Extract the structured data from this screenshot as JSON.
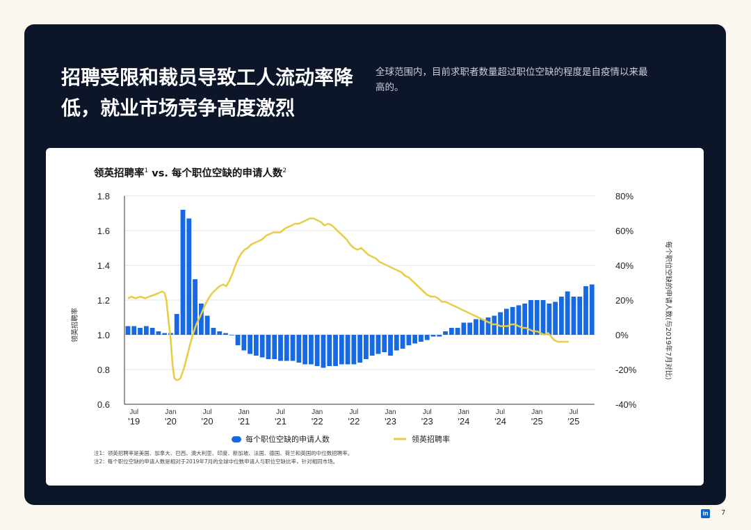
{
  "header": {
    "title": "招聘受限和裁员导致工人流动率降低，就业市场竞争高度激烈",
    "subtitle": "全球范围内，目前求职者数量超过职位空缺的程度是自疫情以来最高的。"
  },
  "chart_data": {
    "type": "bar+line",
    "title_part1": "领英招聘率",
    "title_sup1": "1",
    "title_part2": " vs. 每个职位空缺的申请人数",
    "title_sup2": "2",
    "ylabel_left": "领英招聘率",
    "ylabel_right": "每个职位空缺的申请人数(与2019年7月对比)",
    "ylim_left": [
      0.6,
      1.8
    ],
    "ylim_right": [
      -40,
      80
    ],
    "left_ticks": [
      "0.6",
      "0.8",
      "1.0",
      "1.2",
      "1.4",
      "1.6",
      "1.8"
    ],
    "right_ticks": [
      "-40%",
      "-20%",
      "0%",
      "20%",
      "40%",
      "60%",
      "80%"
    ],
    "x_start": "2019-06",
    "x_ticks": [
      {
        "month": "Jul",
        "year": "'19",
        "index": 1
      },
      {
        "month": "Jan",
        "year": "'20",
        "index": 7
      },
      {
        "month": "Jul",
        "year": "'20",
        "index": 13
      },
      {
        "month": "Jan",
        "year": "'21",
        "index": 19
      },
      {
        "month": "Jul",
        "year": "'21",
        "index": 25
      },
      {
        "month": "Jan",
        "year": "'22",
        "index": 31
      },
      {
        "month": "Jul",
        "year": "'22",
        "index": 37
      },
      {
        "month": "Jan",
        "year": "'23",
        "index": 43
      },
      {
        "month": "Jul",
        "year": "'23",
        "index": 49
      },
      {
        "month": "Jan",
        "year": "'24",
        "index": 55
      },
      {
        "month": "Jul",
        "year": "'24",
        "index": 61
      },
      {
        "month": "Jan",
        "year": "'25",
        "index": 67
      },
      {
        "month": "Jul",
        "year": "'25",
        "index": 73
      }
    ],
    "series": [
      {
        "name": "每个职位空缺的申请人数",
        "kind": "bar",
        "color": "#1668e3",
        "values": [
          5,
          5,
          4,
          5,
          4,
          2,
          1,
          1,
          12,
          72,
          67,
          32,
          18,
          11,
          4,
          2,
          1,
          0,
          -6,
          -9,
          -11,
          -12,
          -13,
          -14,
          -14,
          -15,
          -15,
          -15,
          -16,
          -17,
          -17,
          -18,
          -19,
          -18,
          -18,
          -17,
          -17,
          -17,
          -16,
          -14,
          -12,
          -11,
          -10,
          -12,
          -9,
          -8,
          -6,
          -5,
          -4,
          -3,
          -1,
          -1,
          2,
          4,
          4,
          7,
          7,
          9,
          9,
          10,
          11,
          13,
          15,
          16,
          17,
          18,
          20,
          20,
          20,
          18,
          19,
          22,
          25,
          22,
          22,
          28,
          29
        ]
      },
      {
        "name": "领英招聘率",
        "kind": "line",
        "color": "#e8cd46",
        "points": [
          [
            0,
            1.21
          ],
          [
            0.6,
            1.22
          ],
          [
            1.2,
            1.21
          ],
          [
            2,
            1.22
          ],
          [
            2.8,
            1.21
          ],
          [
            3.5,
            1.22
          ],
          [
            4.3,
            1.23
          ],
          [
            5,
            1.24
          ],
          [
            5.6,
            1.25
          ],
          [
            6,
            1.24
          ],
          [
            6.3,
            1.2
          ],
          [
            6.6,
            1.1
          ],
          [
            7,
            0.97
          ],
          [
            7.3,
            0.83
          ],
          [
            7.6,
            0.75
          ],
          [
            7.9,
            0.74
          ],
          [
            8.2,
            0.74
          ],
          [
            8.6,
            0.75
          ],
          [
            9.2,
            0.81
          ],
          [
            10,
            0.92
          ],
          [
            10.6,
            1.0
          ],
          [
            11.2,
            1.06
          ],
          [
            12,
            1.12
          ],
          [
            12.6,
            1.17
          ],
          [
            13.2,
            1.21
          ],
          [
            13.8,
            1.24
          ],
          [
            14.4,
            1.26
          ],
          [
            15,
            1.28
          ],
          [
            15.6,
            1.29
          ],
          [
            16.1,
            1.28
          ],
          [
            16.6,
            1.31
          ],
          [
            17.1,
            1.35
          ],
          [
            17.6,
            1.4
          ],
          [
            18.1,
            1.44
          ],
          [
            18.6,
            1.47
          ],
          [
            19.1,
            1.49
          ],
          [
            19.6,
            1.5
          ],
          [
            20.2,
            1.52
          ],
          [
            20.8,
            1.53
          ],
          [
            21.4,
            1.54
          ],
          [
            22,
            1.55
          ],
          [
            22.6,
            1.57
          ],
          [
            23.2,
            1.58
          ],
          [
            23.8,
            1.59
          ],
          [
            24.4,
            1.59
          ],
          [
            25,
            1.59
          ],
          [
            25.6,
            1.61
          ],
          [
            26.2,
            1.62
          ],
          [
            26.8,
            1.63
          ],
          [
            27.4,
            1.64
          ],
          [
            28,
            1.64
          ],
          [
            28.6,
            1.65
          ],
          [
            29.2,
            1.66
          ],
          [
            29.8,
            1.67
          ],
          [
            30.4,
            1.67
          ],
          [
            31,
            1.66
          ],
          [
            31.6,
            1.65
          ],
          [
            32.2,
            1.63
          ],
          [
            32.8,
            1.64
          ],
          [
            33.4,
            1.63
          ],
          [
            34,
            1.61
          ],
          [
            34.6,
            1.59
          ],
          [
            35.2,
            1.57
          ],
          [
            35.8,
            1.55
          ],
          [
            36.4,
            1.52
          ],
          [
            37,
            1.5
          ],
          [
            37.6,
            1.49
          ],
          [
            38.2,
            1.5
          ],
          [
            38.8,
            1.48
          ],
          [
            39.4,
            1.46
          ],
          [
            40,
            1.45
          ],
          [
            40.6,
            1.44
          ],
          [
            41.2,
            1.42
          ],
          [
            41.8,
            1.41
          ],
          [
            42.4,
            1.4
          ],
          [
            43,
            1.39
          ],
          [
            43.6,
            1.38
          ],
          [
            44.2,
            1.37
          ],
          [
            44.8,
            1.36
          ],
          [
            45.4,
            1.34
          ],
          [
            46,
            1.33
          ],
          [
            46.6,
            1.31
          ],
          [
            47.2,
            1.29
          ],
          [
            47.8,
            1.27
          ],
          [
            48.4,
            1.25
          ],
          [
            49,
            1.23
          ],
          [
            49.6,
            1.22
          ],
          [
            50.2,
            1.22
          ],
          [
            50.8,
            1.21
          ],
          [
            51.4,
            1.19
          ],
          [
            52,
            1.19
          ],
          [
            52.6,
            1.18
          ],
          [
            53.2,
            1.17
          ],
          [
            53.8,
            1.16
          ],
          [
            54.4,
            1.15
          ],
          [
            55,
            1.14
          ],
          [
            55.6,
            1.13
          ],
          [
            56.2,
            1.12
          ],
          [
            56.8,
            1.11
          ],
          [
            57.4,
            1.1
          ],
          [
            58,
            1.09
          ],
          [
            58.6,
            1.08
          ],
          [
            59.2,
            1.07
          ],
          [
            59.8,
            1.06
          ],
          [
            60.4,
            1.06
          ],
          [
            61,
            1.05
          ],
          [
            61.6,
            1.05
          ],
          [
            62.2,
            1.05
          ],
          [
            62.8,
            1.06
          ],
          [
            63.4,
            1.06
          ],
          [
            64,
            1.05
          ],
          [
            64.6,
            1.04
          ],
          [
            65.2,
            1.04
          ],
          [
            65.8,
            1.03
          ],
          [
            66.4,
            1.02
          ],
          [
            67,
            1.02
          ],
          [
            67.6,
            1.01
          ],
          [
            68.2,
            1.0
          ],
          [
            68.8,
            1.01
          ],
          [
            69.3,
            0.99
          ],
          [
            69.8,
            0.97
          ],
          [
            70.4,
            0.96
          ],
          [
            71.2,
            0.96
          ],
          [
            72.2,
            0.96
          ]
        ]
      }
    ],
    "legend_position": "bottom",
    "grid": "horizontal"
  },
  "footnotes": {
    "note1": "注1：领英招聘率是美国、加拿大、巴西、澳大利亚、印度、新加坡、法国、德国、荷兰和英国的中位数招聘率。",
    "note2": "注2：每个职位空缺的申请人数是相对于2019年7月的全球中位数申请人与职位空缺比率，针对相同市场。"
  },
  "footer": {
    "logo_text": "in",
    "page_number": "7"
  },
  "colors": {
    "panel": "#0d1629",
    "bar": "#1668e3",
    "line": "#e8cd46"
  }
}
